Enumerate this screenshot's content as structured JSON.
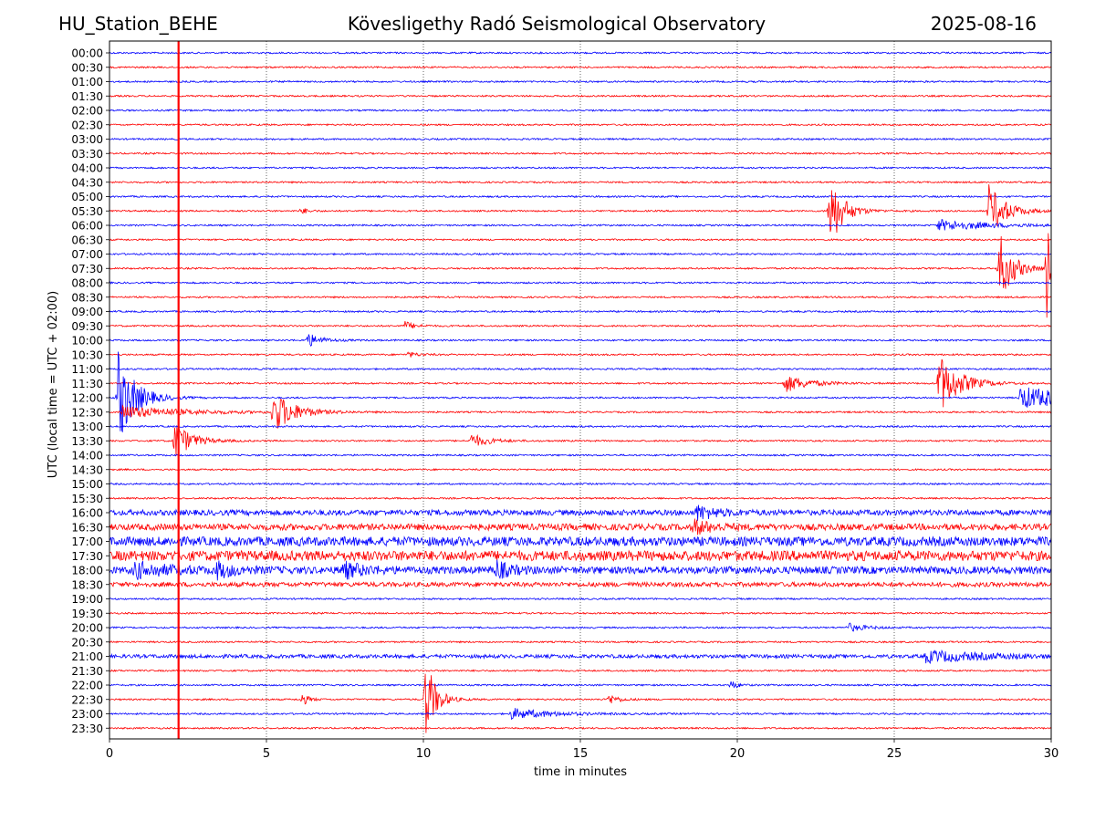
{
  "header": {
    "station": "HU_Station_BEHE",
    "observatory": "Kövesligethy Radó Seismological Observatory",
    "date": "2025-08-16"
  },
  "chart_data": {
    "type": "line",
    "xlabel": "time in minutes",
    "ylabel": "UTC (local time = UTC + 02:00)",
    "xlim": [
      0,
      30
    ],
    "xticks": [
      0,
      5,
      10,
      15,
      20,
      25,
      30
    ],
    "grid": "vertical dotted",
    "rows": [
      "00:00",
      "00:30",
      "01:00",
      "01:30",
      "02:00",
      "02:30",
      "03:00",
      "03:30",
      "04:00",
      "04:30",
      "05:00",
      "05:30",
      "06:00",
      "06:30",
      "07:00",
      "07:30",
      "08:00",
      "08:30",
      "09:00",
      "09:30",
      "10:00",
      "10:30",
      "11:00",
      "11:30",
      "12:00",
      "12:30",
      "13:00",
      "13:30",
      "14:00",
      "14:30",
      "15:00",
      "15:30",
      "16:00",
      "16:30",
      "17:00",
      "17:30",
      "18:00",
      "18:30",
      "19:00",
      "19:30",
      "20:00",
      "20:30",
      "21:00",
      "21:30",
      "22:00",
      "22:30",
      "23:00",
      "23:30"
    ],
    "colors": {
      "even_rows": "#0000ff",
      "odd_rows": "#ff0000"
    },
    "noise": {
      "16:00": 3,
      "16:30": 3.5,
      "17:00": 5,
      "17:30": 5.5,
      "18:00": 4,
      "18:30": 2.5,
      "21:00": 2
    },
    "events": [
      {
        "row": "05:30",
        "x": 6.1,
        "amp": 4,
        "dur": 0.2
      },
      {
        "row": "05:30",
        "x": 22.9,
        "amp": 45,
        "dur": 0.4
      },
      {
        "row": "05:30",
        "x": 28.0,
        "amp": 30,
        "dur": 0.5
      },
      {
        "row": "06:00",
        "x": 26.4,
        "amp": 6,
        "dur": 1.6
      },
      {
        "row": "07:30",
        "x": 28.3,
        "amp": 45,
        "dur": 0.4
      },
      {
        "row": "07:30",
        "x": 29.85,
        "amp": 60,
        "dur": 0.4
      },
      {
        "row": "09:30",
        "x": 9.4,
        "amp": 5,
        "dur": 0.3
      },
      {
        "row": "10:00",
        "x": 6.3,
        "amp": 8,
        "dur": 0.4
      },
      {
        "row": "10:30",
        "x": 9.5,
        "amp": 3,
        "dur": 0.3
      },
      {
        "row": "11:30",
        "x": 21.5,
        "amp": 10,
        "dur": 0.7
      },
      {
        "row": "11:30",
        "x": 26.4,
        "amp": 35,
        "dur": 0.6
      },
      {
        "row": "12:00",
        "x": 0.25,
        "amp": 55,
        "dur": 0.5
      },
      {
        "row": "12:00",
        "x": 29.0,
        "amp": 12,
        "dur": 2.5
      },
      {
        "row": "12:30",
        "x": 0.4,
        "amp": 7,
        "dur": 1.8
      },
      {
        "row": "12:30",
        "x": 5.2,
        "amp": 25,
        "dur": 0.6
      },
      {
        "row": "13:30",
        "x": 2.05,
        "amp": 22,
        "dur": 0.5
      },
      {
        "row": "13:30",
        "x": 11.5,
        "amp": 8,
        "dur": 0.5
      },
      {
        "row": "16:00",
        "x": 18.7,
        "amp": 8,
        "dur": 0.6
      },
      {
        "row": "16:30",
        "x": 18.6,
        "amp": 8,
        "dur": 0.5
      },
      {
        "row": "18:00",
        "x": 0.8,
        "amp": 8,
        "dur": 1.0
      },
      {
        "row": "18:00",
        "x": 3.4,
        "amp": 8,
        "dur": 0.5
      },
      {
        "row": "18:00",
        "x": 7.4,
        "amp": 9,
        "dur": 0.6
      },
      {
        "row": "18:00",
        "x": 12.3,
        "amp": 10,
        "dur": 0.4
      },
      {
        "row": "20:00",
        "x": 23.5,
        "amp": 5,
        "dur": 0.5
      },
      {
        "row": "21:00",
        "x": 26.0,
        "amp": 6,
        "dur": 1.8
      },
      {
        "row": "22:00",
        "x": 19.8,
        "amp": 5,
        "dur": 0.2
      },
      {
        "row": "22:30",
        "x": 6.1,
        "amp": 8,
        "dur": 0.2
      },
      {
        "row": "22:30",
        "x": 10.05,
        "amp": 50,
        "dur": 0.3
      },
      {
        "row": "22:30",
        "x": 15.9,
        "amp": 6,
        "dur": 0.3
      },
      {
        "row": "23:00",
        "x": 12.8,
        "amp": 6,
        "dur": 1.2
      }
    ],
    "calibration_line": {
      "x": 2.2,
      "color": "#ff0000"
    }
  }
}
